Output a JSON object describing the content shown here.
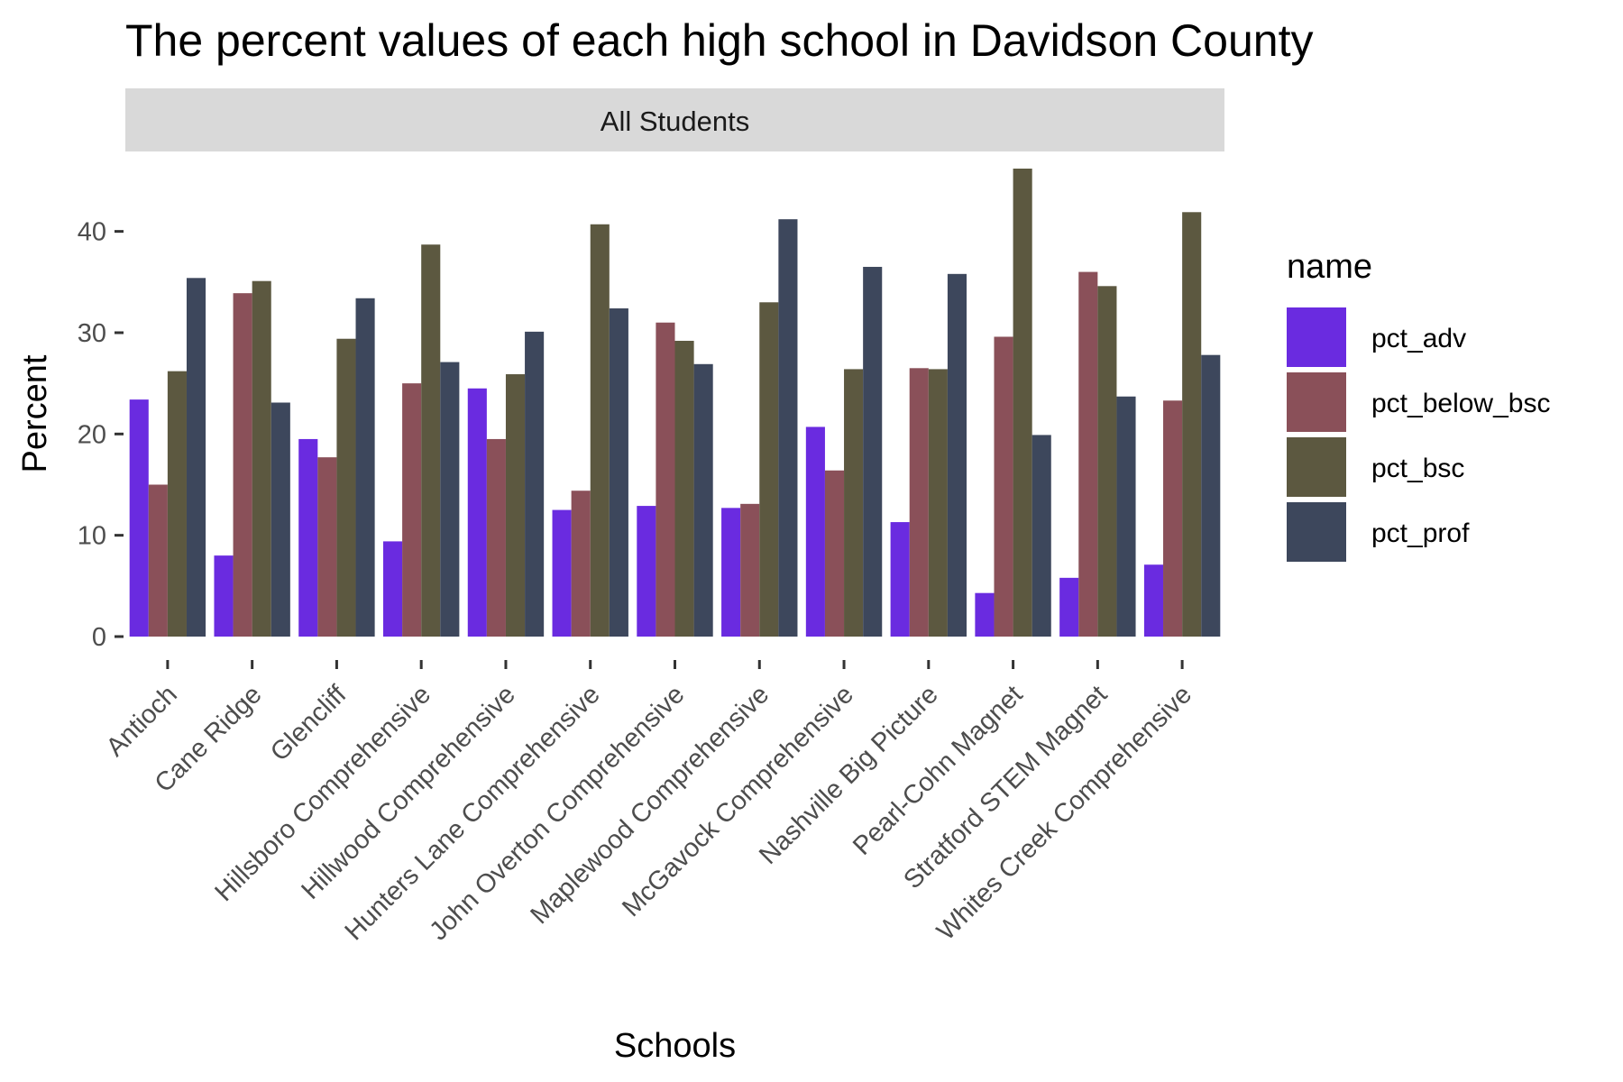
{
  "chart_data": {
    "type": "bar",
    "title": "The percent values of each high school in Davidson County",
    "facet_label": "All Students",
    "xlabel": "Schools",
    "ylabel": "Percent",
    "ylim": [
      0,
      47
    ],
    "yticks": [
      0,
      10,
      20,
      30,
      40
    ],
    "grid": false,
    "legend_title": "name",
    "legend_position": "right",
    "categories": [
      "Antioch",
      "Cane Ridge",
      "Glencliff",
      "Hillsboro Comprehensive",
      "Hillwood Comprehensive",
      "Hunters Lane Comprehensive",
      "John Overton Comprehensive",
      "Maplewood Comprehensive",
      "McGavock Comprehensive",
      "Nashville Big Picture",
      "Pearl-Cohn Magnet",
      "Stratford STEM Magnet",
      "Whites Creek Comprehensive"
    ],
    "series": [
      {
        "name": "pct_adv",
        "color": "#6a2be0",
        "values": [
          23.4,
          8.0,
          19.5,
          9.4,
          24.5,
          12.5,
          12.9,
          12.7,
          20.7,
          11.3,
          4.3,
          5.8,
          7.1
        ]
      },
      {
        "name": "pct_below_bsc",
        "color": "#8a5059",
        "values": [
          15.0,
          33.9,
          17.7,
          25.0,
          19.5,
          14.4,
          31.0,
          13.1,
          16.4,
          26.5,
          29.6,
          36.0,
          23.3
        ]
      },
      {
        "name": "pct_bsc",
        "color": "#5c5840",
        "values": [
          26.2,
          35.1,
          29.4,
          38.7,
          25.9,
          40.7,
          29.2,
          33.0,
          26.4,
          26.4,
          46.2,
          34.6,
          41.9
        ]
      },
      {
        "name": "pct_prof",
        "color": "#3d475c",
        "values": [
          35.4,
          23.1,
          33.4,
          27.1,
          30.1,
          32.4,
          26.9,
          41.2,
          36.5,
          35.8,
          19.9,
          23.7,
          27.8
        ]
      }
    ]
  }
}
